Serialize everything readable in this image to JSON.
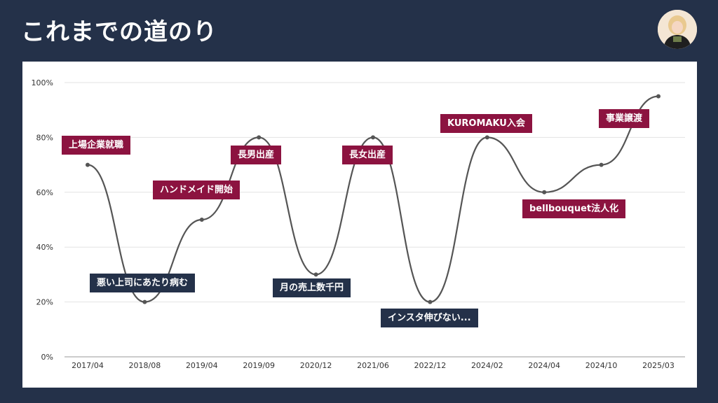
{
  "header": {
    "title": "これまでの道のり"
  },
  "chart_data": {
    "type": "line",
    "categories": [
      "2017/04",
      "2018/08",
      "2019/04",
      "2019/09",
      "2020/12",
      "2021/06",
      "2022/12",
      "2024/02",
      "2024/04",
      "2024/10",
      "2025/03"
    ],
    "series": [
      {
        "values": [
          70,
          20,
          50,
          80,
          30,
          80,
          20,
          80,
          60,
          70,
          95
        ]
      }
    ],
    "y_ticks": [
      "0%",
      "20%",
      "40%",
      "60%",
      "80%",
      "100%"
    ],
    "ylim": [
      0,
      100
    ],
    "grid": true,
    "line_color": "#555555",
    "annotations": [
      {
        "text": "上場企業就職",
        "style": "up"
      },
      {
        "text": "悪い上司にあたり病む",
        "style": "down"
      },
      {
        "text": "ハンドメイド開始",
        "style": "up"
      },
      {
        "text": "長男出産",
        "style": "up"
      },
      {
        "text": "月の売上数千円",
        "style": "down"
      },
      {
        "text": "長女出産",
        "style": "up"
      },
      {
        "text": "インスタ伸びない...",
        "style": "down"
      },
      {
        "text": "KUROMAKU入会",
        "style": "up"
      },
      {
        "text": "bellbouquet法人化",
        "style": "up"
      },
      {
        "text": "事業譲渡",
        "style": "up"
      }
    ],
    "colors": {
      "up": "#8c1340",
      "down": "#243149",
      "background": "#243149"
    }
  }
}
